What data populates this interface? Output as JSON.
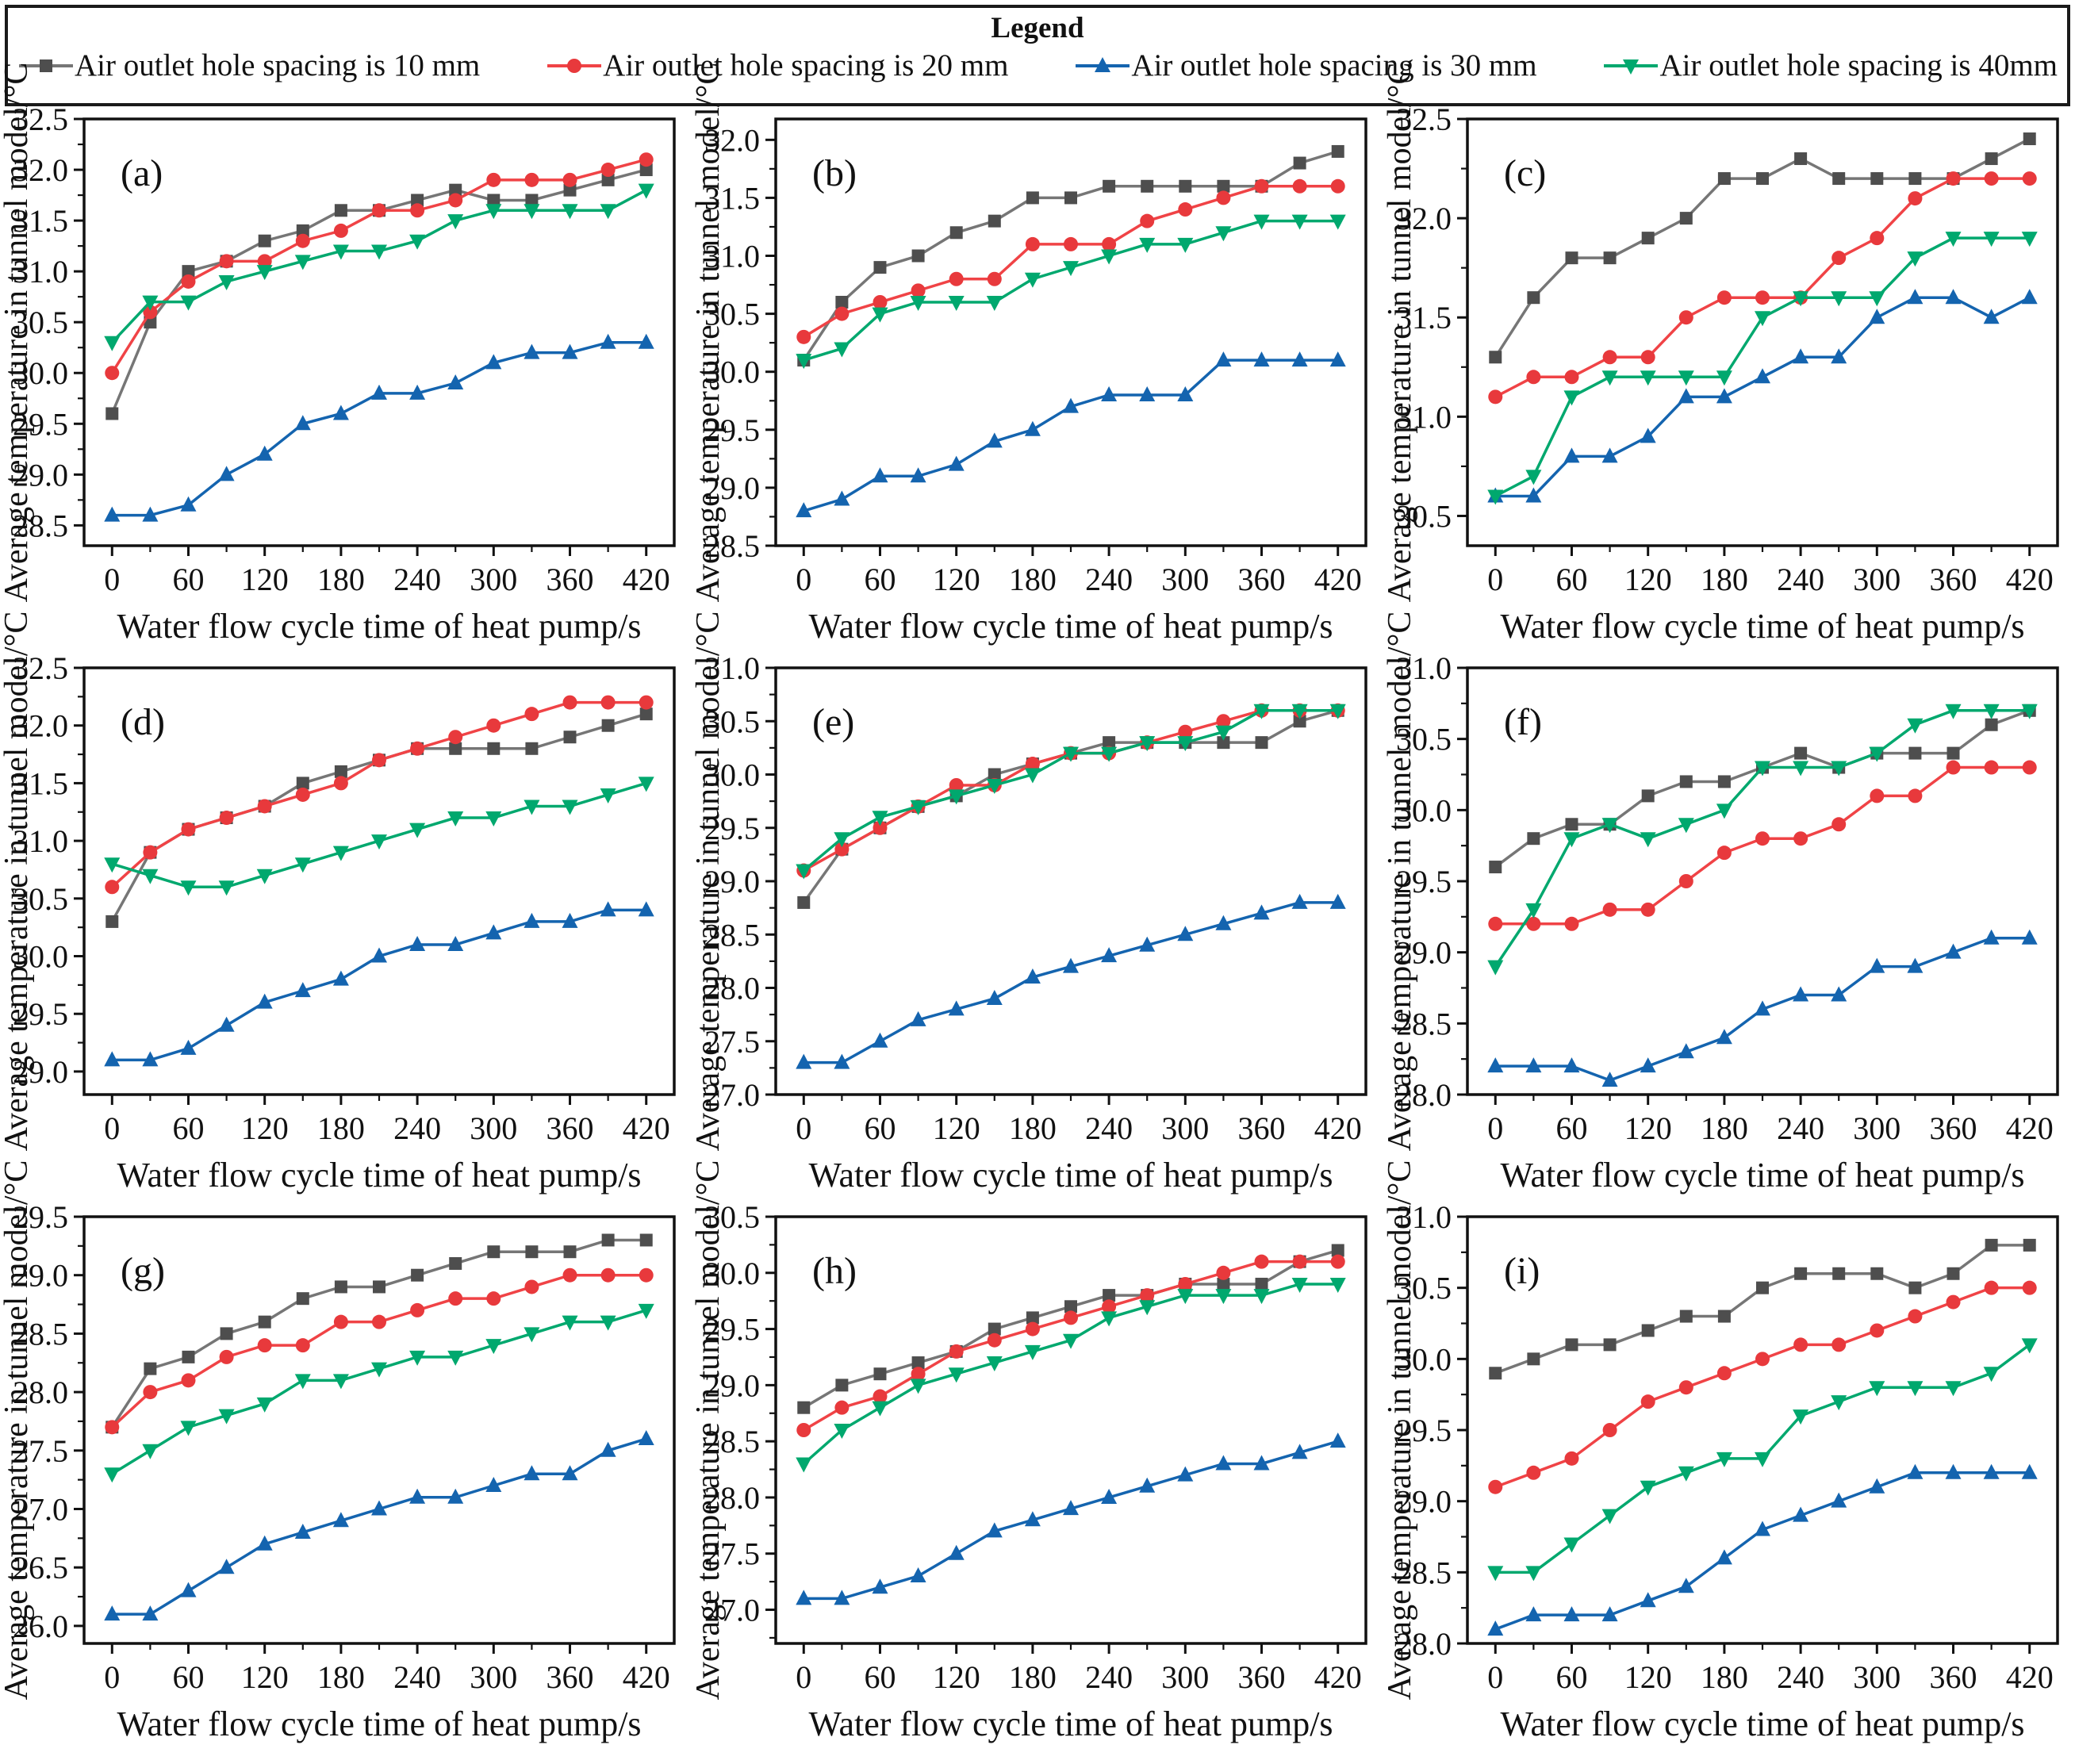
{
  "legend": {
    "title": "Legend",
    "entries": [
      {
        "label": "Air outlet hole spacing is 10 mm",
        "marker": "square",
        "color": "#4e4e4e",
        "line": "#767676"
      },
      {
        "label": "Air outlet hole spacing is 20 mm",
        "marker": "circle",
        "color": "#e8393c",
        "line": "#f04346"
      },
      {
        "label": "Air outlet hole spacing is 30 mm",
        "marker": "triangle-up",
        "color": "#1464af",
        "line": "#1464af"
      },
      {
        "label": "Air outlet hole spacing is 40mm",
        "marker": "triangle-down",
        "color": "#00a86e",
        "line": "#00a86e"
      }
    ]
  },
  "axes": {
    "xlabel": "Water flow cycle time of heat pump/s",
    "ylabel": "Average temperature in tunnel model/°C",
    "x": [
      0,
      30,
      60,
      90,
      120,
      150,
      180,
      210,
      240,
      270,
      300,
      330,
      360,
      390,
      420
    ],
    "x_major_ticks": [
      0,
      60,
      120,
      180,
      240,
      300,
      360,
      420
    ],
    "x_minor_ticks": [
      30,
      90,
      150,
      210,
      270,
      330,
      390
    ],
    "xlim": [
      -22,
      442
    ]
  },
  "chart_data": [
    {
      "type": "line",
      "panel": "(a)",
      "ylim": [
        28.3,
        32.5
      ],
      "yticks": [
        28.5,
        29.0,
        29.5,
        30.0,
        30.5,
        31.0,
        31.5,
        32.0,
        32.5
      ],
      "series": [
        {
          "name": "Air outlet hole spacing is 10 mm",
          "values": [
            29.6,
            30.5,
            31.0,
            31.1,
            31.3,
            31.4,
            31.6,
            31.6,
            31.7,
            31.8,
            31.7,
            31.7,
            31.8,
            31.9,
            32.0
          ]
        },
        {
          "name": "Air outlet hole spacing is 20 mm",
          "values": [
            30.0,
            30.6,
            30.9,
            31.1,
            31.1,
            31.3,
            31.4,
            31.6,
            31.6,
            31.7,
            31.9,
            31.9,
            31.9,
            32.0,
            32.1
          ]
        },
        {
          "name": "Air outlet hole spacing is 30 mm",
          "values": [
            28.6,
            28.6,
            28.7,
            29.0,
            29.2,
            29.5,
            29.6,
            29.8,
            29.8,
            29.9,
            30.1,
            30.2,
            30.2,
            30.3,
            30.3
          ]
        },
        {
          "name": "Air outlet hole spacing is 40 mm",
          "values": [
            30.3,
            30.7,
            30.7,
            30.9,
            31.0,
            31.1,
            31.2,
            31.2,
            31.3,
            31.5,
            31.6,
            31.6,
            31.6,
            31.6,
            31.8
          ]
        }
      ]
    },
    {
      "type": "line",
      "panel": "(b)",
      "ylim": [
        28.5,
        32.18
      ],
      "yticks": [
        28.5,
        29.0,
        29.5,
        30.0,
        30.5,
        31.0,
        31.5,
        32.0
      ],
      "series": [
        {
          "name": "Air outlet hole spacing is 10 mm",
          "values": [
            30.1,
            30.6,
            30.9,
            31.0,
            31.2,
            31.3,
            31.5,
            31.5,
            31.6,
            31.6,
            31.6,
            31.6,
            31.6,
            31.8,
            31.9
          ]
        },
        {
          "name": "Air outlet hole spacing is 20 mm",
          "values": [
            30.3,
            30.5,
            30.6,
            30.7,
            30.8,
            30.8,
            31.1,
            31.1,
            31.1,
            31.3,
            31.4,
            31.5,
            31.6,
            31.6,
            31.6
          ]
        },
        {
          "name": "Air outlet hole spacing is 30 mm",
          "values": [
            28.8,
            28.9,
            29.1,
            29.1,
            29.2,
            29.4,
            29.5,
            29.7,
            29.8,
            29.8,
            29.8,
            30.1,
            30.1,
            30.1,
            30.1
          ]
        },
        {
          "name": "Air outlet hole spacing is 40 mm",
          "values": [
            30.1,
            30.2,
            30.5,
            30.6,
            30.6,
            30.6,
            30.8,
            30.9,
            31.0,
            31.1,
            31.1,
            31.2,
            31.3,
            31.3,
            31.3
          ]
        }
      ]
    },
    {
      "type": "line",
      "panel": "(c)",
      "ylim": [
        30.35,
        32.5
      ],
      "yticks": [
        30.5,
        31.0,
        31.5,
        32.0,
        32.5
      ],
      "series": [
        {
          "name": "Air outlet hole spacing is 10 mm",
          "values": [
            31.3,
            31.6,
            31.8,
            31.8,
            31.9,
            32.0,
            32.2,
            32.2,
            32.3,
            32.2,
            32.2,
            32.2,
            32.2,
            32.3,
            32.4
          ]
        },
        {
          "name": "Air outlet hole spacing is 20 mm",
          "values": [
            31.1,
            31.2,
            31.2,
            31.3,
            31.3,
            31.5,
            31.6,
            31.6,
            31.6,
            31.8,
            31.9,
            32.1,
            32.2,
            32.2,
            32.2
          ]
        },
        {
          "name": "Air outlet hole spacing is 30 mm",
          "values": [
            30.6,
            30.6,
            30.8,
            30.8,
            30.9,
            31.1,
            31.1,
            31.2,
            31.3,
            31.3,
            31.5,
            31.6,
            31.6,
            31.5,
            31.6
          ]
        },
        {
          "name": "Air outlet hole spacing is 40 mm",
          "values": [
            30.6,
            30.7,
            31.1,
            31.2,
            31.2,
            31.2,
            31.2,
            31.5,
            31.6,
            31.6,
            31.6,
            31.8,
            31.9,
            31.9,
            31.9
          ]
        }
      ]
    },
    {
      "type": "line",
      "panel": "(d)",
      "ylim": [
        28.8,
        32.5
      ],
      "yticks": [
        29.0,
        29.5,
        30.0,
        30.5,
        31.0,
        31.5,
        32.0,
        32.5
      ],
      "series": [
        {
          "name": "Air outlet hole spacing is 10 mm",
          "values": [
            30.3,
            30.9,
            31.1,
            31.2,
            31.3,
            31.5,
            31.6,
            31.7,
            31.8,
            31.8,
            31.8,
            31.8,
            31.9,
            32.0,
            32.1
          ]
        },
        {
          "name": "Air outlet hole spacing is 20 mm",
          "values": [
            30.6,
            30.9,
            31.1,
            31.2,
            31.3,
            31.4,
            31.5,
            31.7,
            31.8,
            31.9,
            32.0,
            32.1,
            32.2,
            32.2,
            32.2
          ]
        },
        {
          "name": "Air outlet hole spacing is 30 mm",
          "values": [
            29.1,
            29.1,
            29.2,
            29.4,
            29.6,
            29.7,
            29.8,
            30.0,
            30.1,
            30.1,
            30.2,
            30.3,
            30.3,
            30.4,
            30.4
          ]
        },
        {
          "name": "Air outlet hole spacing is 40 mm",
          "values": [
            30.8,
            30.7,
            30.6,
            30.6,
            30.7,
            30.8,
            30.9,
            31.0,
            31.1,
            31.2,
            31.2,
            31.3,
            31.3,
            31.4,
            31.5
          ]
        }
      ]
    },
    {
      "type": "line",
      "panel": "(e)",
      "ylim": [
        27.0,
        31.0
      ],
      "yticks": [
        27.0,
        27.5,
        28.0,
        28.5,
        29.0,
        29.5,
        30.0,
        30.5,
        31.0
      ],
      "series": [
        {
          "name": "Air outlet hole spacing is 10 mm",
          "values": [
            28.8,
            29.3,
            29.5,
            29.7,
            29.8,
            30.0,
            30.1,
            30.2,
            30.3,
            30.3,
            30.3,
            30.3,
            30.3,
            30.5,
            30.6
          ]
        },
        {
          "name": "Air outlet hole spacing is 20 mm",
          "values": [
            29.1,
            29.3,
            29.5,
            29.7,
            29.9,
            29.9,
            30.1,
            30.2,
            30.2,
            30.3,
            30.4,
            30.5,
            30.6,
            30.6,
            30.6
          ]
        },
        {
          "name": "Air outlet hole spacing is 30 mm",
          "values": [
            27.3,
            27.3,
            27.5,
            27.7,
            27.8,
            27.9,
            28.1,
            28.2,
            28.3,
            28.4,
            28.5,
            28.6,
            28.7,
            28.8,
            28.8
          ]
        },
        {
          "name": "Air outlet hole spacing is 40 mm",
          "values": [
            29.1,
            29.4,
            29.6,
            29.7,
            29.8,
            29.9,
            30.0,
            30.2,
            30.2,
            30.3,
            30.3,
            30.4,
            30.6,
            30.6,
            30.6
          ]
        }
      ]
    },
    {
      "type": "line",
      "panel": "(f)",
      "ylim": [
        28.0,
        31.0
      ],
      "yticks": [
        28.0,
        28.5,
        29.0,
        29.5,
        30.0,
        30.5,
        31.0
      ],
      "series": [
        {
          "name": "Air outlet hole spacing is 10 mm",
          "values": [
            29.6,
            29.8,
            29.9,
            29.9,
            30.1,
            30.2,
            30.2,
            30.3,
            30.4,
            30.3,
            30.4,
            30.4,
            30.4,
            30.6,
            30.7
          ]
        },
        {
          "name": "Air outlet hole spacing is 20 mm",
          "values": [
            29.2,
            29.2,
            29.2,
            29.3,
            29.3,
            29.5,
            29.7,
            29.8,
            29.8,
            29.9,
            30.1,
            30.1,
            30.3,
            30.3,
            30.3
          ]
        },
        {
          "name": "Air outlet hole spacing is 30 mm",
          "values": [
            28.2,
            28.2,
            28.2,
            28.1,
            28.2,
            28.3,
            28.4,
            28.6,
            28.7,
            28.7,
            28.9,
            28.9,
            29.0,
            29.1,
            29.1
          ]
        },
        {
          "name": "Air outlet hole spacing is 40 mm",
          "values": [
            28.9,
            29.3,
            29.8,
            29.9,
            29.8,
            29.9,
            30.0,
            30.3,
            30.3,
            30.3,
            30.4,
            30.6,
            30.7,
            30.7,
            30.7
          ]
        }
      ]
    },
    {
      "type": "line",
      "panel": "(g)",
      "ylim": [
        25.85,
        29.5
      ],
      "yticks": [
        26.0,
        26.5,
        27.0,
        27.5,
        28.0,
        28.5,
        29.0,
        29.5
      ],
      "series": [
        {
          "name": "Air outlet hole spacing is 10 mm",
          "values": [
            27.7,
            28.2,
            28.3,
            28.5,
            28.6,
            28.8,
            28.9,
            28.9,
            29.0,
            29.1,
            29.2,
            29.2,
            29.2,
            29.3,
            29.3
          ]
        },
        {
          "name": "Air outlet hole spacing is 20 mm",
          "values": [
            27.7,
            28.0,
            28.1,
            28.3,
            28.4,
            28.4,
            28.6,
            28.6,
            28.7,
            28.8,
            28.8,
            28.9,
            29.0,
            29.0,
            29.0
          ]
        },
        {
          "name": "Air outlet hole spacing is 30 mm",
          "values": [
            26.1,
            26.1,
            26.3,
            26.5,
            26.7,
            26.8,
            26.9,
            27.0,
            27.1,
            27.1,
            27.2,
            27.3,
            27.3,
            27.5,
            27.6
          ]
        },
        {
          "name": "Air outlet hole spacing is 40 mm",
          "values": [
            27.3,
            27.5,
            27.7,
            27.8,
            27.9,
            28.1,
            28.1,
            28.2,
            28.3,
            28.3,
            28.4,
            28.5,
            28.6,
            28.6,
            28.7
          ]
        }
      ]
    },
    {
      "type": "line",
      "panel": "(h)",
      "ylim": [
        26.7,
        30.5
      ],
      "yticks": [
        27.0,
        27.5,
        28.0,
        28.5,
        29.0,
        29.5,
        30.0,
        30.5
      ],
      "series": [
        {
          "name": "Air outlet hole spacing is 10 mm",
          "values": [
            28.8,
            29.0,
            29.1,
            29.2,
            29.3,
            29.5,
            29.6,
            29.7,
            29.8,
            29.8,
            29.9,
            29.9,
            29.9,
            30.1,
            30.2
          ]
        },
        {
          "name": "Air outlet hole spacing is 20 mm",
          "values": [
            28.6,
            28.8,
            28.9,
            29.1,
            29.3,
            29.4,
            29.5,
            29.6,
            29.7,
            29.8,
            29.9,
            30.0,
            30.1,
            30.1,
            30.1
          ]
        },
        {
          "name": "Air outlet hole spacing is 30 mm",
          "values": [
            27.1,
            27.1,
            27.2,
            27.3,
            27.5,
            27.7,
            27.8,
            27.9,
            28.0,
            28.1,
            28.2,
            28.3,
            28.3,
            28.4,
            28.5
          ]
        },
        {
          "name": "Air outlet hole spacing is 40 mm",
          "values": [
            28.3,
            28.6,
            28.8,
            29.0,
            29.1,
            29.2,
            29.3,
            29.4,
            29.6,
            29.7,
            29.8,
            29.8,
            29.8,
            29.9,
            29.9
          ]
        }
      ]
    },
    {
      "type": "line",
      "panel": "(i)",
      "ylim": [
        28.0,
        31.0
      ],
      "yticks": [
        28.0,
        28.5,
        29.0,
        29.5,
        30.0,
        30.5,
        31.0
      ],
      "series": [
        {
          "name": "Air outlet hole spacing is 10 mm",
          "values": [
            29.9,
            30.0,
            30.1,
            30.1,
            30.2,
            30.3,
            30.3,
            30.5,
            30.6,
            30.6,
            30.6,
            30.5,
            30.6,
            30.8,
            30.8
          ]
        },
        {
          "name": "Air outlet hole spacing is 20 mm",
          "values": [
            29.1,
            29.2,
            29.3,
            29.5,
            29.7,
            29.8,
            29.9,
            30.0,
            30.1,
            30.1,
            30.2,
            30.3,
            30.4,
            30.5,
            30.5
          ]
        },
        {
          "name": "Air outlet hole spacing is 30 mm",
          "values": [
            28.1,
            28.2,
            28.2,
            28.2,
            28.3,
            28.4,
            28.6,
            28.8,
            28.9,
            29.0,
            29.1,
            29.2,
            29.2,
            29.2,
            29.2
          ]
        },
        {
          "name": "Air outlet hole spacing is 40 mm",
          "values": [
            28.5,
            28.5,
            28.7,
            28.9,
            29.1,
            29.2,
            29.3,
            29.3,
            29.6,
            29.7,
            29.8,
            29.8,
            29.8,
            29.9,
            30.1
          ]
        }
      ]
    }
  ]
}
